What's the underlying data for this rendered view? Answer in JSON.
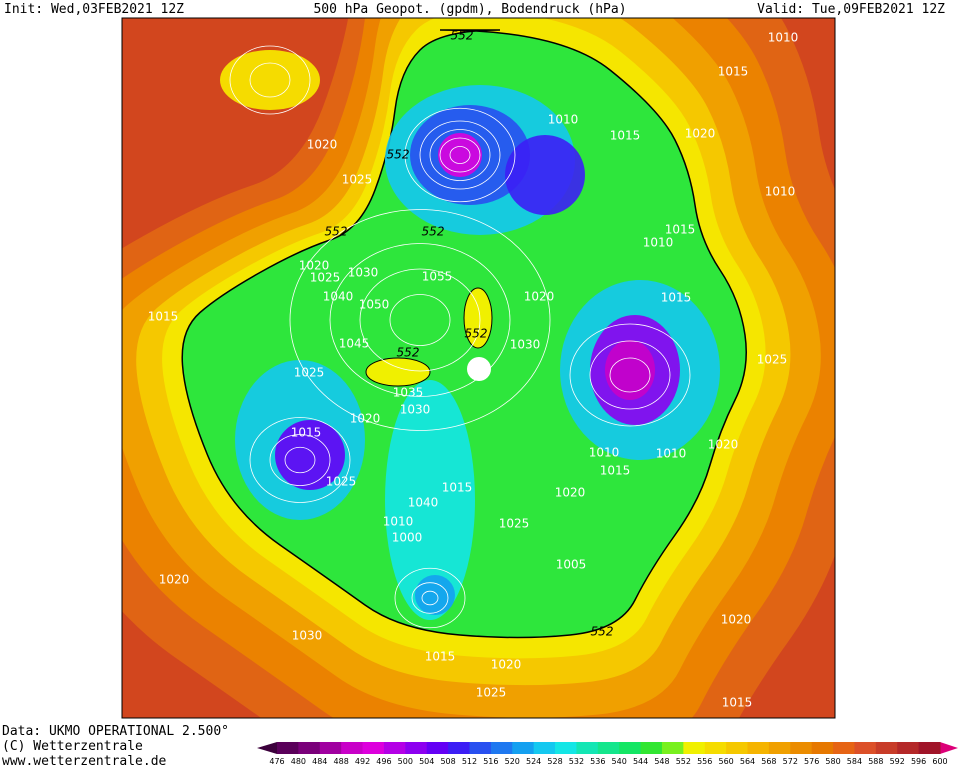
{
  "header": {
    "init": "Init: Wed,03FEB2021 12Z",
    "title": "500 hPa Geopot. (gpdm), Bodendruck (hPa)",
    "valid": "Valid: Tue,09FEB2021 12Z"
  },
  "footer": {
    "data": "Data: UKMO OPERATIONAL 2.500°",
    "copyright": "(C) Wetterzentrale",
    "url": "www.wetterzentrale.de"
  },
  "colorbar": {
    "levels": [
      476,
      480,
      484,
      488,
      492,
      496,
      500,
      504,
      508,
      512,
      516,
      520,
      524,
      528,
      532,
      536,
      540,
      544,
      548,
      552,
      556,
      560,
      564,
      568,
      572,
      576,
      580,
      584,
      588,
      592,
      596,
      600
    ],
    "colors": [
      "#5a005a",
      "#7a007a",
      "#a000a0",
      "#c800c8",
      "#dd00dd",
      "#b400e6",
      "#8c00f0",
      "#6400f5",
      "#3c1ef5",
      "#2850f0",
      "#1e78f0",
      "#14a0f0",
      "#14c8f0",
      "#14e6e6",
      "#14e6b4",
      "#14e68c",
      "#14e664",
      "#32e632",
      "#78f01e",
      "#f0f000",
      "#f5dc00",
      "#f5c800",
      "#f5b400",
      "#f0a000",
      "#eb8c00",
      "#e67800",
      "#e66414",
      "#dc5028",
      "#c83c28",
      "#b42828",
      "#a01428"
    ],
    "low_color": "#3c003c",
    "high_color": "#dc0078"
  },
  "map_labels": [
    "1010",
    "1015",
    "552",
    "1010",
    "1015",
    "1020",
    "1020",
    "552",
    "1025",
    "1010",
    "552",
    "552",
    "1015",
    "1010",
    "1020",
    "1025",
    "1030",
    "1055",
    "1040",
    "1050",
    "1020",
    "1015",
    "1015",
    "552",
    "1045",
    "1030",
    "552",
    "1025",
    "1025",
    "1035",
    "1030",
    "1020",
    "1015",
    "1020",
    "1010",
    "1010",
    "1015",
    "1025",
    "1015",
    "1020",
    "1040",
    "1010",
    "1025",
    "1000",
    "1005",
    "1020",
    "552",
    "1020",
    "1030",
    "1015",
    "1020",
    "1025",
    "1015"
  ]
}
